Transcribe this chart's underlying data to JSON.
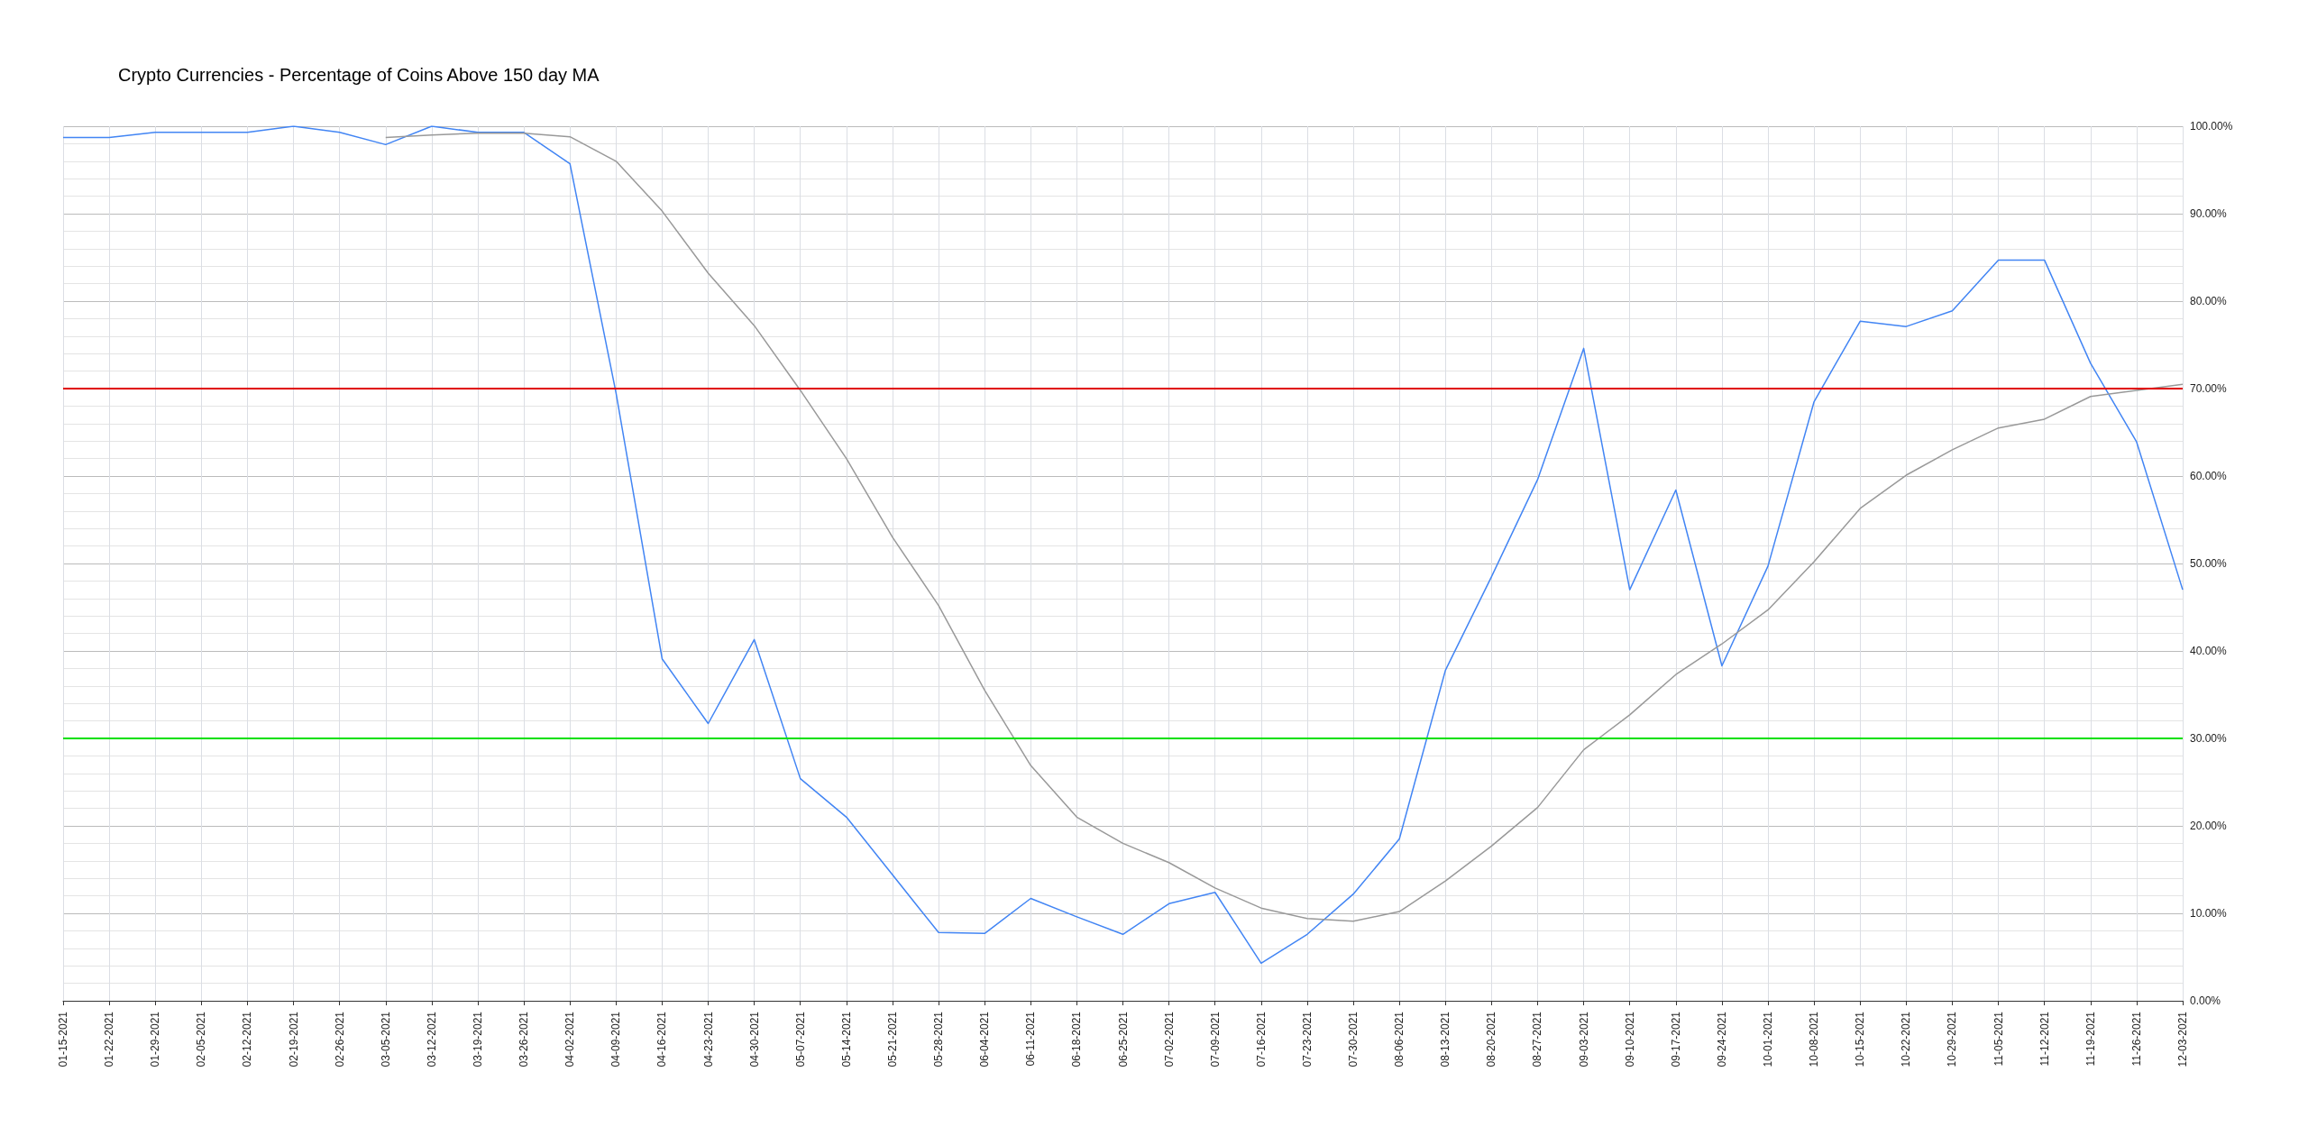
{
  "chart_data": {
    "type": "line",
    "title": "Crypto Currencies - Percentage of Coins Above 150 day MA",
    "categories": [
      "01-15-2021",
      "01-22-2021",
      "01-29-2021",
      "02-05-2021",
      "02-12-2021",
      "02-19-2021",
      "02-26-2021",
      "03-05-2021",
      "03-12-2021",
      "03-19-2021",
      "03-26-2021",
      "04-02-2021",
      "04-09-2021",
      "04-16-2021",
      "04-23-2021",
      "04-30-2021",
      "05-07-2021",
      "05-14-2021",
      "05-21-2021",
      "05-28-2021",
      "06-04-2021",
      "06-11-2021",
      "06-18-2021",
      "06-25-2021",
      "07-02-2021",
      "07-09-2021",
      "07-16-2021",
      "07-23-2021",
      "07-30-2021",
      "08-06-2021",
      "08-13-2021",
      "08-20-2021",
      "08-27-2021",
      "09-03-2021",
      "09-10-2021",
      "09-17-2021",
      "09-24-2021",
      "10-01-2021",
      "10-08-2021",
      "10-15-2021",
      "10-22-2021",
      "10-29-2021",
      "11-05-2021",
      "11-12-2021",
      "11-19-2021",
      "11-26-2021",
      "12-03-2021"
    ],
    "series": [
      {
        "color": "#4285f4",
        "values": [
          98.7,
          98.7,
          99.3,
          99.3,
          99.3,
          100,
          99.3,
          97.9,
          100,
          99.3,
          99.3,
          95.7,
          69.5,
          39.1,
          31.7,
          41.3,
          25.4,
          21,
          14.4,
          7.8,
          7.7,
          11.7,
          9.6,
          7.6,
          11.1,
          12.4,
          4.3,
          7.6,
          12.2,
          18.5,
          37.8,
          48.5,
          59.6,
          74.6,
          47,
          58.4,
          38.3,
          49.7,
          68.5,
          77.7,
          77.1,
          78.9,
          84.7,
          84.7,
          72.9,
          63.9,
          47
        ]
      },
      {
        "color": "#999999",
        "values": [
          null,
          null,
          null,
          null,
          null,
          null,
          null,
          98.7,
          99,
          99.2,
          99.2,
          98.8,
          96,
          90.3,
          83.2,
          77.2,
          69.8,
          62,
          53,
          45.2,
          35.5,
          26.9,
          21,
          18,
          15.8,
          12.9,
          10.6,
          9.4,
          9.1,
          10.2,
          13.7,
          17.7,
          22.1,
          28.7,
          32.7,
          37.3,
          40.8,
          44.7,
          50.2,
          56.3,
          60.1,
          63,
          65.5,
          66.5,
          69.1,
          69.8,
          70.5
        ]
      }
    ],
    "ylim": [
      0,
      100
    ],
    "yticks": [
      {
        "value": 0,
        "label": "0.00%"
      },
      {
        "value": 10,
        "label": "10.00%"
      },
      {
        "value": 20,
        "label": "20.00%"
      },
      {
        "value": 30,
        "label": "30.00%"
      },
      {
        "value": 40,
        "label": "40.00%"
      },
      {
        "value": 50,
        "label": "50.00%"
      },
      {
        "value": 60,
        "label": "60.00%"
      },
      {
        "value": 70,
        "label": "70.00%"
      },
      {
        "value": 80,
        "label": "80.00%"
      },
      {
        "value": 90,
        "label": "90.00%"
      },
      {
        "value": 100,
        "label": "100.00%"
      }
    ],
    "ref_lines": [
      {
        "axis": "y",
        "value": 70,
        "color": "#e00000"
      },
      {
        "axis": "y",
        "value": 30,
        "color": "#00e000"
      }
    ],
    "grid": true,
    "marker": "none",
    "line_style": "solid"
  }
}
